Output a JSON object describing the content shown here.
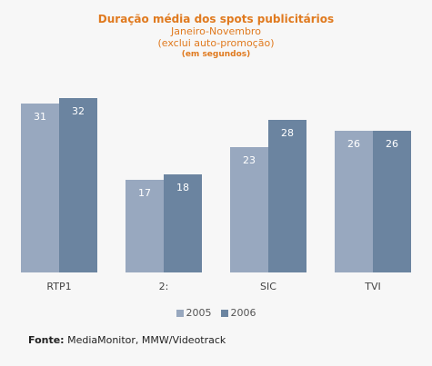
{
  "title": "Duração média dos spots publicitários",
  "subtitle": "Janeiro-Novembro",
  "note": "(exclui auto-promoção)",
  "unit": "(em segundos)",
  "source_label": "Fonte:",
  "source_text": "MediaMonitor, MMW/Videotrack",
  "colors": {
    "s2005": "#98a8bf",
    "s2006": "#6b84a0",
    "label_inside": "#ffffff",
    "axis_text": "#444444"
  },
  "chart_data": {
    "type": "bar",
    "categories": [
      "RTP1",
      "2:",
      "SIC",
      "TVI"
    ],
    "series": [
      {
        "name": "2005",
        "values": [
          31,
          17,
          23,
          26
        ]
      },
      {
        "name": "2006",
        "values": [
          32,
          18,
          28,
          26
        ]
      }
    ],
    "ylim": [
      0,
      36
    ],
    "grid": false,
    "legend": "bottom-center",
    "data_labels": true
  }
}
